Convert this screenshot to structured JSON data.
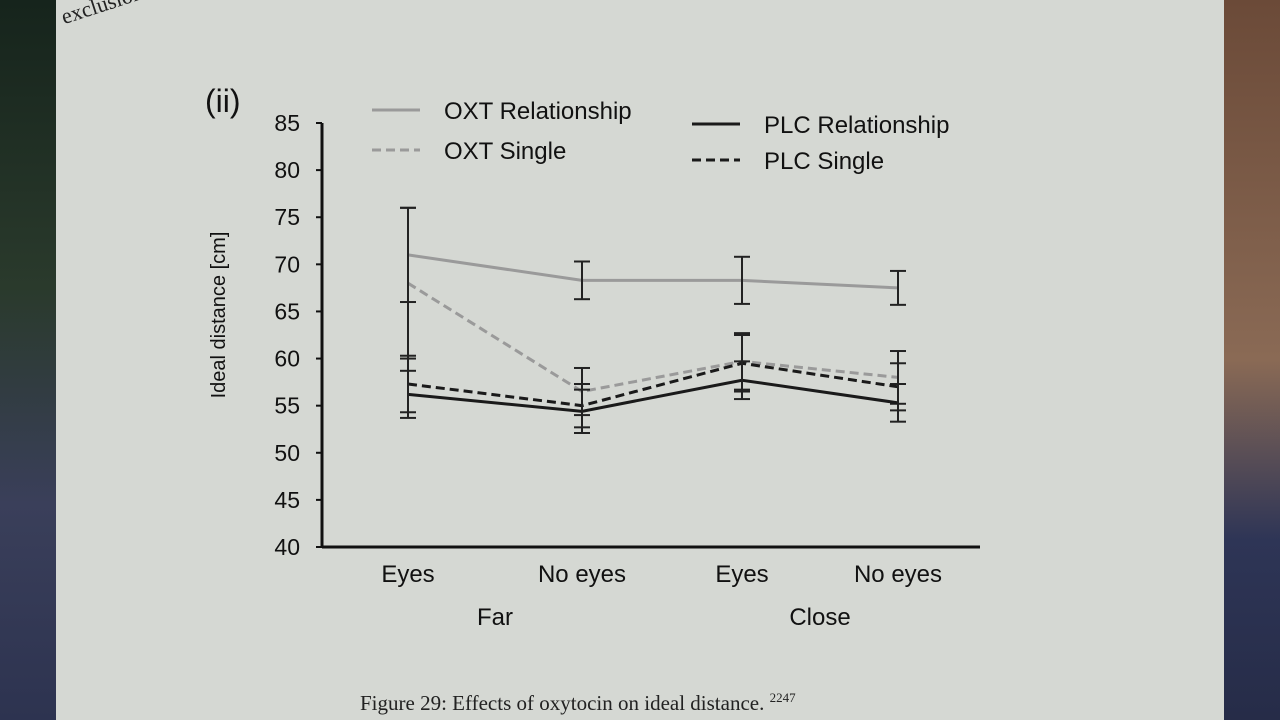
{
  "page": {
    "top_text": "exclusion of",
    "caption": "Figure 29: Effects of oxytocin on ideal distance.",
    "caption_ref": "2247"
  },
  "chart_data": {
    "type": "line",
    "panel_label": "(ii)",
    "ylabel": "Ideal distance [cm]",
    "ylim": [
      40,
      85
    ],
    "yticks": [
      40,
      45,
      50,
      55,
      60,
      65,
      70,
      75,
      80,
      85
    ],
    "categories": [
      "Eyes",
      "No eyes",
      "Eyes",
      "No eyes"
    ],
    "groups": [
      {
        "label": "Far",
        "span": [
          0,
          1
        ]
      },
      {
        "label": "Close",
        "span": [
          2,
          3
        ]
      }
    ],
    "legend": "top",
    "series": [
      {
        "name": "OXT Relationship",
        "color": "#9a9a9a",
        "dash": false,
        "values": [
          71,
          68.3,
          68.3,
          67.5
        ],
        "errors": [
          5,
          2,
          2.5,
          1.8
        ]
      },
      {
        "name": "OXT Single",
        "color": "#9a9a9a",
        "dash": true,
        "values": [
          68,
          56.5,
          59.7,
          58
        ],
        "errors": [
          8,
          2.5,
          3,
          2.8
        ]
      },
      {
        "name": "PLC Relationship",
        "color": "#1a1a1a",
        "dash": false,
        "values": [
          56.2,
          54.4,
          57.7,
          55.3
        ],
        "errors": [
          2.5,
          2.3,
          2,
          2
        ]
      },
      {
        "name": "PLC Single",
        "color": "#1a1a1a",
        "dash": true,
        "values": [
          57.3,
          55,
          59.5,
          57
        ],
        "errors": [
          3,
          2.3,
          3,
          2.5
        ]
      }
    ]
  }
}
